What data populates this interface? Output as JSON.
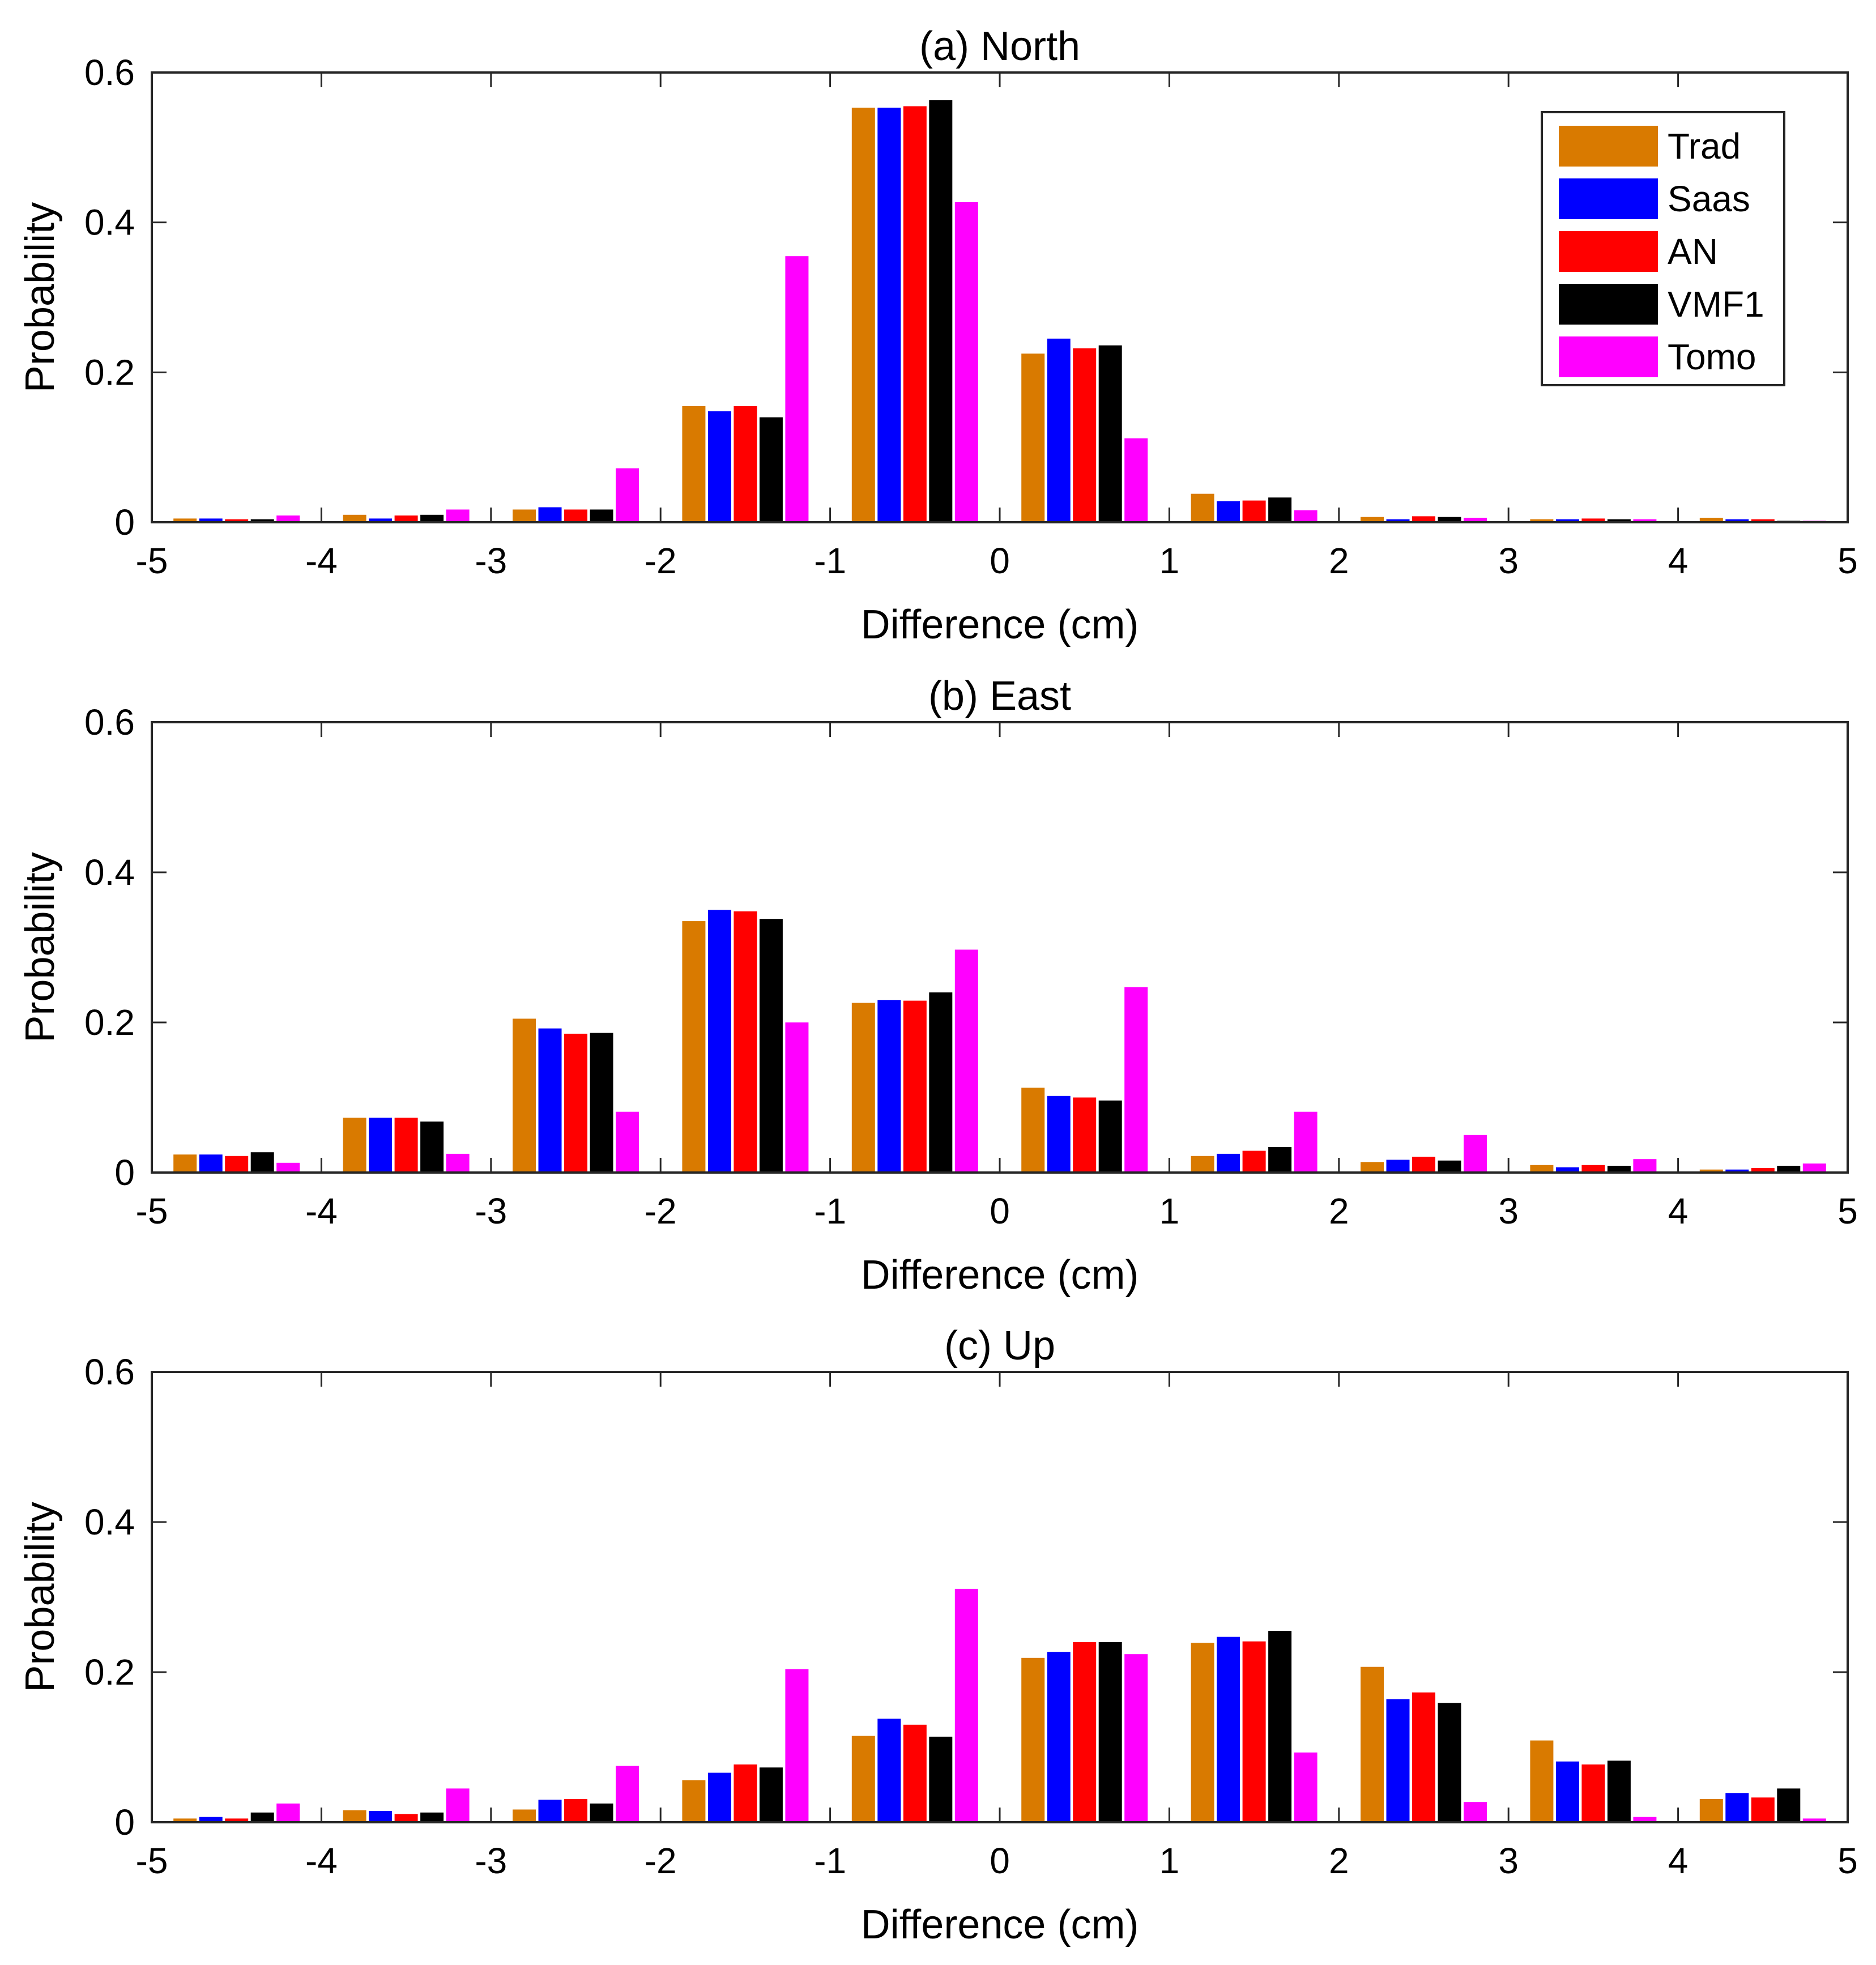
{
  "chart_data": [
    {
      "type": "bar",
      "title": "(a) North",
      "xlabel": "Difference (cm)",
      "ylabel": "Probability",
      "xlim": [
        -5,
        5
      ],
      "ylim": [
        0,
        0.6
      ],
      "xticks": [
        "-5",
        "-4",
        "-3",
        "-2",
        "-1",
        "0",
        "1",
        "2",
        "3",
        "4",
        "5"
      ],
      "yticks": [
        "0",
        "0.2",
        "0.4",
        "0.6"
      ],
      "categories": [
        -4.5,
        -3.5,
        -2.5,
        -1.5,
        -0.5,
        0.5,
        1.5,
        2.5,
        3.5,
        4.5
      ],
      "series": [
        {
          "name": "Trad",
          "values": [
            0.005,
            0.01,
            0.017,
            0.155,
            0.553,
            0.225,
            0.038,
            0.007,
            0.004,
            0.006
          ]
        },
        {
          "name": "Saas",
          "values": [
            0.005,
            0.005,
            0.02,
            0.148,
            0.553,
            0.245,
            0.028,
            0.004,
            0.004,
            0.004
          ]
        },
        {
          "name": "AN",
          "values": [
            0.004,
            0.009,
            0.017,
            0.155,
            0.555,
            0.232,
            0.029,
            0.008,
            0.005,
            0.004
          ]
        },
        {
          "name": "VMF1",
          "values": [
            0.004,
            0.01,
            0.017,
            0.14,
            0.563,
            0.236,
            0.033,
            0.007,
            0.004,
            0.002
          ]
        },
        {
          "name": "Tomo",
          "values": [
            0.009,
            0.017,
            0.072,
            0.355,
            0.427,
            0.112,
            0.016,
            0.006,
            0.004,
            0.002
          ]
        }
      ],
      "legend": "top-right"
    },
    {
      "type": "bar",
      "title": "(b) East",
      "xlabel": "Difference (cm)",
      "ylabel": "Probability",
      "xlim": [
        -5,
        5
      ],
      "ylim": [
        0,
        0.6
      ],
      "xticks": [
        "-5",
        "-4",
        "-3",
        "-2",
        "-1",
        "0",
        "1",
        "2",
        "3",
        "4",
        "5"
      ],
      "yticks": [
        "0",
        "0.2",
        "0.4",
        "0.6"
      ],
      "categories": [
        -4.5,
        -3.5,
        -2.5,
        -1.5,
        -0.5,
        0.5,
        1.5,
        2.5,
        3.5,
        4.5
      ],
      "series": [
        {
          "name": "Trad",
          "values": [
            0.024,
            0.073,
            0.205,
            0.335,
            0.226,
            0.113,
            0.022,
            0.014,
            0.01,
            0.004
          ]
        },
        {
          "name": "Saas",
          "values": [
            0.024,
            0.073,
            0.192,
            0.35,
            0.23,
            0.102,
            0.025,
            0.017,
            0.007,
            0.004
          ]
        },
        {
          "name": "AN",
          "values": [
            0.022,
            0.073,
            0.185,
            0.348,
            0.229,
            0.1,
            0.029,
            0.021,
            0.01,
            0.006
          ]
        },
        {
          "name": "VMF1",
          "values": [
            0.027,
            0.068,
            0.186,
            0.338,
            0.24,
            0.096,
            0.034,
            0.016,
            0.009,
            0.009
          ]
        },
        {
          "name": "Tomo",
          "values": [
            0.013,
            0.025,
            0.081,
            0.2,
            0.297,
            0.247,
            0.081,
            0.05,
            0.018,
            0.012
          ]
        }
      ]
    },
    {
      "type": "bar",
      "title": "(c) Up",
      "xlabel": "Difference (cm)",
      "ylabel": "Probability",
      "xlim": [
        -5,
        5
      ],
      "ylim": [
        0,
        0.6
      ],
      "xticks": [
        "-5",
        "-4",
        "-3",
        "-2",
        "-1",
        "0",
        "1",
        "2",
        "3",
        "4",
        "5"
      ],
      "yticks": [
        "0",
        "0.2",
        "0.4",
        "0.6"
      ],
      "categories": [
        -4.5,
        -3.5,
        -2.5,
        -1.5,
        -0.5,
        0.5,
        1.5,
        2.5,
        3.5,
        4.5
      ],
      "series": [
        {
          "name": "Trad",
          "values": [
            0.005,
            0.016,
            0.017,
            0.056,
            0.115,
            0.219,
            0.239,
            0.207,
            0.109,
            0.031
          ]
        },
        {
          "name": "Saas",
          "values": [
            0.007,
            0.015,
            0.03,
            0.066,
            0.138,
            0.227,
            0.247,
            0.164,
            0.081,
            0.039
          ]
        },
        {
          "name": "AN",
          "values": [
            0.005,
            0.011,
            0.031,
            0.077,
            0.13,
            0.24,
            0.241,
            0.173,
            0.077,
            0.033
          ]
        },
        {
          "name": "VMF1",
          "values": [
            0.013,
            0.013,
            0.025,
            0.073,
            0.114,
            0.24,
            0.255,
            0.159,
            0.082,
            0.045
          ]
        },
        {
          "name": "Tomo",
          "values": [
            0.025,
            0.045,
            0.075,
            0.204,
            0.311,
            0.224,
            0.093,
            0.027,
            0.007,
            0.005
          ]
        }
      ]
    }
  ],
  "colors": {
    "Trad": "#D97A00",
    "Saas": "#0000FF",
    "AN": "#FF0000",
    "VMF1": "#000000",
    "Tomo": "#FF00FF"
  }
}
